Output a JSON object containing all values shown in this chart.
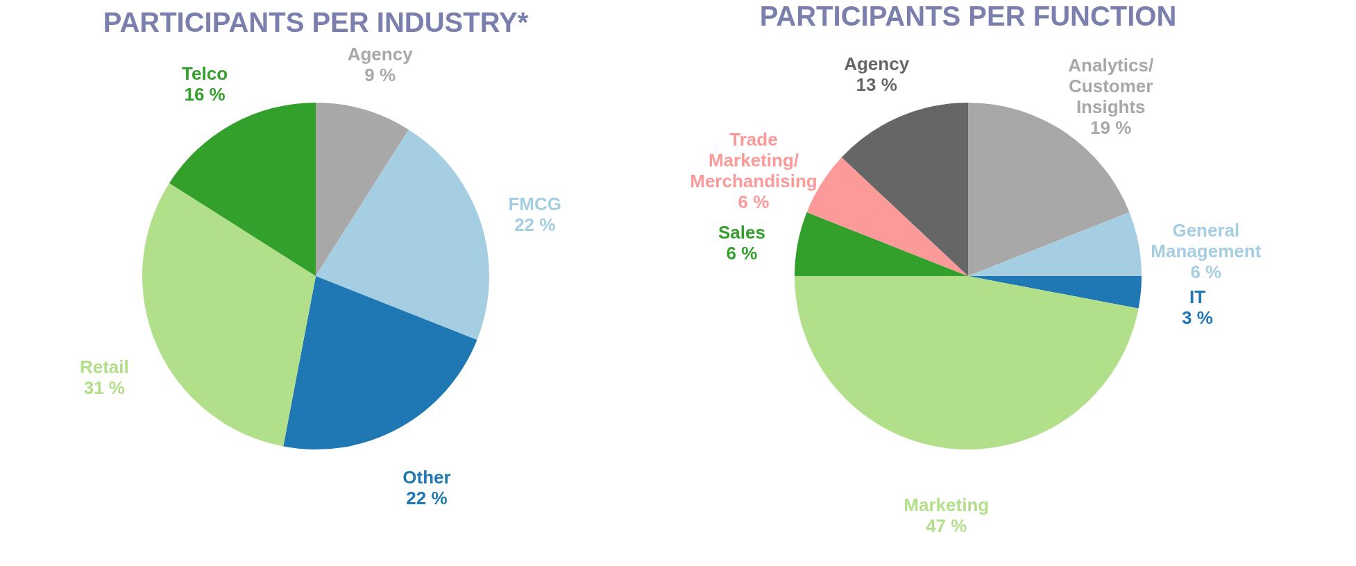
{
  "chart_data": [
    {
      "type": "pie",
      "title": "PARTICIPANTS PER INDUSTRY*",
      "legend": false,
      "categories": [
        "Agency",
        "FMCG",
        "Other",
        "Retail",
        "Telco"
      ],
      "values": [
        9,
        22,
        22,
        31,
        16
      ],
      "value_labels": [
        "9 %",
        "22 %",
        "22 %",
        "31 %",
        "16 %"
      ],
      "colors": [
        "#a8a8a8",
        "#a6cee3",
        "#1f78b4",
        "#b2df8a",
        "#33a02c"
      ]
    },
    {
      "type": "pie",
      "title": "PARTICIPANTS PER FUNCTION",
      "legend": false,
      "categories": [
        "Analytics/Customer Insights",
        "General Management",
        "IT",
        "Marketing",
        "Sales",
        "Trade Marketing/Merchandising",
        "Agency"
      ],
      "values": [
        19,
        6,
        3,
        47,
        6,
        6,
        13
      ],
      "value_labels": [
        "19 %",
        "6 %",
        "3 %",
        "47 %",
        "6 %",
        "6 %",
        "13 %"
      ],
      "colors": [
        "#a8a8a8",
        "#a6cee3",
        "#1f78b4",
        "#b2df8a",
        "#33a02c",
        "#fb9a99",
        "#666666"
      ]
    }
  ]
}
